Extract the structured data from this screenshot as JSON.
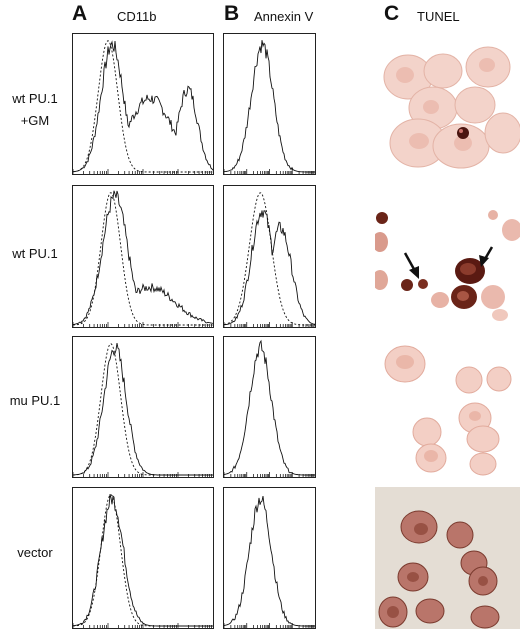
{
  "panels": {
    "A": {
      "letter": "A",
      "title": "CD11b"
    },
    "B": {
      "letter": "B",
      "title": "Annexin V"
    },
    "C": {
      "letter": "C",
      "title": "TUNEL"
    }
  },
  "rows": [
    {
      "label_line1": "wt PU.1",
      "label_line2": "+GM"
    },
    {
      "label_line1": "wt PU.1",
      "label_line2": ""
    },
    {
      "label_line1": "mu PU.1",
      "label_line2": ""
    },
    {
      "label_line1": "vector",
      "label_line2": ""
    }
  ],
  "colors": {
    "histogram_line": "#111111",
    "stain_light": "#f2c9be",
    "stain_dark": "#5a1a14",
    "background_grey": "#e6e0d8"
  }
}
